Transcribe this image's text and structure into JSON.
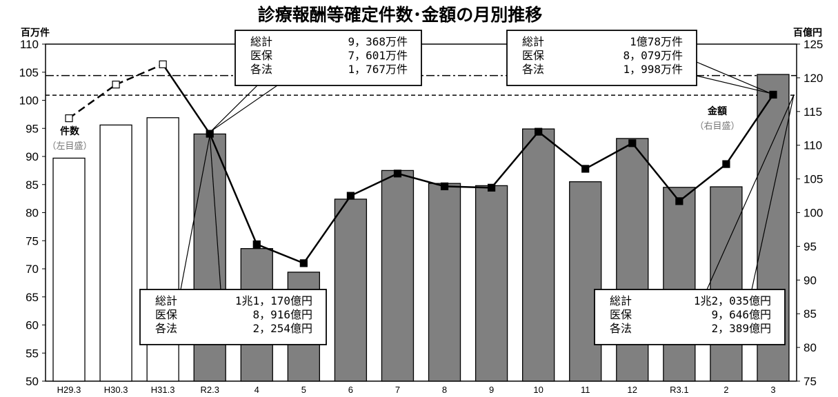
{
  "chart_data": {
    "type": "bar",
    "title": "診療報酬等確定件数･金額の月別推移",
    "left_unit": "百万件",
    "right_unit": "百億円",
    "categories": [
      "H29.3",
      "H30.3",
      "H31.3",
      "R2.3",
      "4",
      "5",
      "6",
      "7",
      "8",
      "9",
      "10",
      "11",
      "12",
      "R3.1",
      "2",
      "3"
    ],
    "y_left": {
      "range": [
        50,
        110
      ],
      "ticks": [
        50,
        55,
        60,
        65,
        70,
        75,
        80,
        85,
        90,
        95,
        100,
        105,
        110
      ]
    },
    "y_right": {
      "range": [
        75,
        125
      ],
      "ticks": [
        75,
        80,
        85,
        90,
        95,
        100,
        105,
        110,
        115,
        120,
        125
      ]
    },
    "series": [
      {
        "name": "件数",
        "kind": "bar",
        "axis": "left",
        "values": [
          89.7,
          95.6,
          96.9,
          94.0,
          73.6,
          69.4,
          82.4,
          87.5,
          85.2,
          84.8,
          94.9,
          85.5,
          93.2,
          84.5,
          84.6,
          104.6
        ],
        "styles": [
          "white",
          "white",
          "white",
          "gray",
          "gray",
          "gray",
          "gray",
          "gray",
          "gray",
          "gray",
          "gray",
          "gray",
          "gray",
          "gray",
          "gray",
          "gray"
        ]
      },
      {
        "name": "金額",
        "kind": "line",
        "axis": "right",
        "values": [
          114.0,
          119.0,
          122.0,
          111.7,
          95.3,
          92.5,
          102.5,
          105.8,
          103.9,
          103.7,
          112.0,
          106.5,
          110.3,
          101.7,
          107.2,
          117.5
        ]
      }
    ],
    "reference_lines": [
      {
        "style": "dash-dot",
        "axis": "left",
        "value": 104.4
      },
      {
        "style": "dashed",
        "axis": "left",
        "value": 100.9
      }
    ],
    "annotations": {
      "count_label": "件数",
      "count_sub": "（左目盛）",
      "amount_label": "金額",
      "amount_sub": "（右目盛）"
    },
    "callouts": [
      {
        "rows": [
          [
            "総計",
            "9，368万件"
          ],
          [
            "医保",
            "7，601万件"
          ],
          [
            "各法",
            "1，767万件"
          ]
        ]
      },
      {
        "rows": [
          [
            "総計",
            "1億78万件"
          ],
          [
            "医保",
            "8，079万件"
          ],
          [
            "各法",
            "1，998万件"
          ]
        ]
      },
      {
        "rows": [
          [
            "総計",
            "1兆1，170億円"
          ],
          [
            "医保",
            "8，916億円"
          ],
          [
            "各法",
            "2，254億円"
          ]
        ]
      },
      {
        "rows": [
          [
            "総計",
            "1兆2，035億円"
          ],
          [
            "医保",
            "9，646億円"
          ],
          [
            "各法",
            "2，389億円"
          ]
        ]
      }
    ]
  }
}
